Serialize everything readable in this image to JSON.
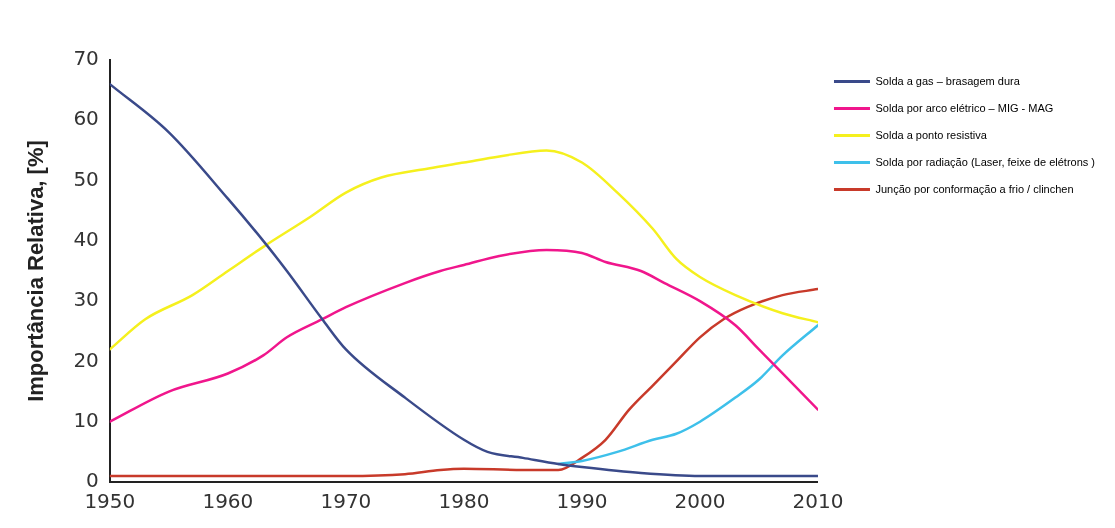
{
  "chart_data": {
    "type": "line",
    "ylabel": "Importância Relativa, [%]",
    "xlim": [
      1950,
      2010
    ],
    "xticks": [
      1950,
      1960,
      1970,
      1980,
      1990,
      2000,
      2010
    ],
    "ylim": [
      0,
      70
    ],
    "yticks": [
      0,
      10,
      20,
      30,
      40,
      50,
      60,
      70
    ],
    "grid": false,
    "legend": "top right",
    "marker": "none",
    "line_style": "solid",
    "series": [
      {
        "name": "Solda a gas – brasagem dura",
        "color": "#3a4a8a",
        "x": [
          1950,
          1955,
          1960,
          1963,
          1965,
          1968,
          1970,
          1975,
          1980,
          1982,
          1985,
          1988,
          1990,
          1995,
          2000,
          2005,
          2010
        ],
        "values": [
          66,
          58,
          47,
          40,
          35,
          27,
          22,
          14,
          7,
          5,
          4,
          3,
          2.5,
          1.5,
          1,
          1,
          1
        ]
      },
      {
        "name": "Solda por arco elétrico – MIG - MAG",
        "color": "#f0168c",
        "x": [
          1950,
          1955,
          1960,
          1963,
          1965,
          1968,
          1970,
          1975,
          1978,
          1980,
          1983,
          1987,
          1990,
          1992,
          1995,
          1997,
          2000,
          2003,
          2005,
          2007,
          2010
        ],
        "values": [
          10,
          15,
          18,
          21,
          24,
          27,
          29,
          33,
          35,
          36,
          37.5,
          38.5,
          38,
          36.5,
          35,
          33,
          30,
          26,
          22,
          18,
          12
        ]
      },
      {
        "name": "Solda a ponto resistiva",
        "color": "#f5f01e",
        "x": [
          1950,
          1953,
          1957,
          1960,
          1963,
          1967,
          1970,
          1973,
          1977,
          1980,
          1983,
          1987,
          1990,
          1993,
          1996,
          1998,
          2000,
          2003,
          2007,
          2010
        ],
        "values": [
          22,
          27,
          31,
          35,
          39,
          44,
          48,
          50.5,
          52,
          53,
          54,
          55,
          53,
          48,
          42,
          37,
          34,
          31,
          28,
          26.5
        ]
      },
      {
        "name": "Solda por radiação (Laser, feixe de elétrons )",
        "color": "#3ec0ea",
        "x": [
          1988,
          1990,
          1993,
          1996,
          1998,
          2000,
          2003,
          2005,
          2007,
          2010
        ],
        "values": [
          3,
          3.5,
          5,
          7,
          8,
          10,
          14,
          17,
          21,
          26
        ]
      },
      {
        "name": "Junção por conformação a frio / clinchen",
        "color": "#c83a2a",
        "x": [
          1950,
          1960,
          1970,
          1975,
          1978,
          1980,
          1985,
          1988,
          1990,
          1992,
          1994,
          1996,
          1998,
          2000,
          2002,
          2004,
          2007,
          2010
        ],
        "values": [
          1,
          1,
          1,
          1.3,
          2,
          2.2,
          2,
          2,
          4,
          7,
          12,
          16,
          20,
          24,
          27,
          29,
          31,
          32
        ]
      }
    ]
  }
}
